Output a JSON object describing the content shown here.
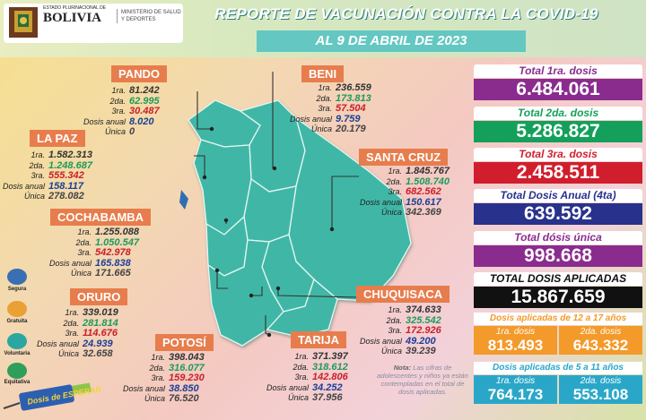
{
  "header": {
    "state_name": "ESTADO PLURINACIONAL DE",
    "country": "BOLIVIA",
    "ministry": "MINISTERIO DE SALUD Y DEPORTES",
    "title": "REPORTE DE VACUNACIÓN CONTRA LA COVID-19",
    "date": "AL  9 DE ABRIL DE 2023"
  },
  "departments": {
    "pando": {
      "name": "PANDO",
      "labels": [
        "1ra.",
        "2da.",
        "3ra.",
        "Dosis anual",
        "Única"
      ],
      "values": [
        "81.242",
        "62.995",
        "30.487",
        "8.020",
        "0"
      ]
    },
    "beni": {
      "name": "BENI",
      "labels": [
        "1ra.",
        "2da.",
        "3ra.",
        "Dosis anual",
        "Única"
      ],
      "values": [
        "236.559",
        "173.813",
        "57.504",
        "9.759",
        "20.179"
      ]
    },
    "la_paz": {
      "name": "LA PAZ",
      "labels": [
        "1ra.",
        "2da.",
        "3ra.",
        "Dosis anual",
        "Única"
      ],
      "values": [
        "1.582.313",
        "1.248.687",
        "555.342",
        "158.117",
        "278.082"
      ]
    },
    "santa_cruz": {
      "name": "SANTA CRUZ",
      "labels": [
        "1ra.",
        "2da.",
        "3ra.",
        "Dosis anual",
        "Única"
      ],
      "values": [
        "1.845.767",
        "1.508.740",
        "682.562",
        "150.617",
        "342.369"
      ]
    },
    "cochabamba": {
      "name": "COCHABAMBA",
      "labels": [
        "1ra.",
        "2da.",
        "3ra.",
        "Dosis anual",
        "Única"
      ],
      "values": [
        "1.255.088",
        "1.050.547",
        "542.978",
        "165.838",
        "171.665"
      ]
    },
    "oruro": {
      "name": "ORURO",
      "labels": [
        "1ra.",
        "2da.",
        "3ra.",
        "Dosis anual",
        "Única"
      ],
      "values": [
        "339.019",
        "281.814",
        "114.676",
        "24.939",
        "32.658"
      ]
    },
    "chuquisaca": {
      "name": "CHUQUISACA",
      "labels": [
        "1ra.",
        "2da.",
        "3ra.",
        "Dosis anual",
        "Única"
      ],
      "values": [
        "374.633",
        "325.542",
        "172.926",
        "49.200",
        "39.239"
      ]
    },
    "potosi": {
      "name": "POTOSÍ",
      "labels": [
        "1ra.",
        "2da.",
        "3ra.",
        "Dosis anual",
        "Única"
      ],
      "values": [
        "398.043",
        "316.077",
        "159.230",
        "38.850",
        "76.520"
      ]
    },
    "tarija": {
      "name": "TARIJA",
      "labels": [
        "1ra.",
        "2da.",
        "3ra.",
        "Dosis anual",
        "Única"
      ],
      "values": [
        "371.397",
        "318.612",
        "142.806",
        "34.252",
        "37.956"
      ]
    }
  },
  "totals": [
    {
      "label": "Total 1ra. dosis",
      "value": "6.484.061",
      "color": "#8a2c8e",
      "label_color": "#8a2c8e"
    },
    {
      "label": "Total 2da. dosis",
      "value": "5.286.827",
      "color": "#14a05a",
      "label_color": "#14a05a"
    },
    {
      "label": "Total 3ra. dosis",
      "value": "2.458.511",
      "color": "#d11e2d",
      "label_color": "#d11e2d"
    },
    {
      "label": "Total Dosis Anual (4ta)",
      "value": "639.592",
      "color": "#28328c",
      "label_color": "#28328c"
    },
    {
      "label": "Total dósis única",
      "value": "998.668",
      "color": "#8a2c8e",
      "label_color": "#8a2c8e"
    },
    {
      "label": "TOTAL DOSIS APLICADAS",
      "value": "15.867.659",
      "color": "#111111",
      "label_color": "#111111"
    }
  ],
  "adolescents": {
    "title": "Dosis aplicadas de 12 a 17 años",
    "first_label": "1ra. dosis",
    "first": "813.493",
    "second_label": "2da. dosis",
    "second": "643.332",
    "color": "#f39a2b"
  },
  "children": {
    "title": "Dosis aplicadas de 5 a 11 años",
    "first_label": "1ra. dosis",
    "first": "764.173",
    "second_label": "2da. dosis",
    "second": "553.108",
    "color": "#2aa7c8"
  },
  "side_icons": [
    "Segura",
    "Gratuita",
    "Voluntaria",
    "Equitativa"
  ],
  "side_icon_names": [
    "shield-icon",
    "coin-icon",
    "hand-icon",
    "scales-icon"
  ],
  "syringe_text": "Dosis de ESPERANZA",
  "nota": {
    "bold": "Nota:",
    "text": "Las cifras de adolescentes y niños ya están contempladas en el total de dosis aplicadas."
  }
}
